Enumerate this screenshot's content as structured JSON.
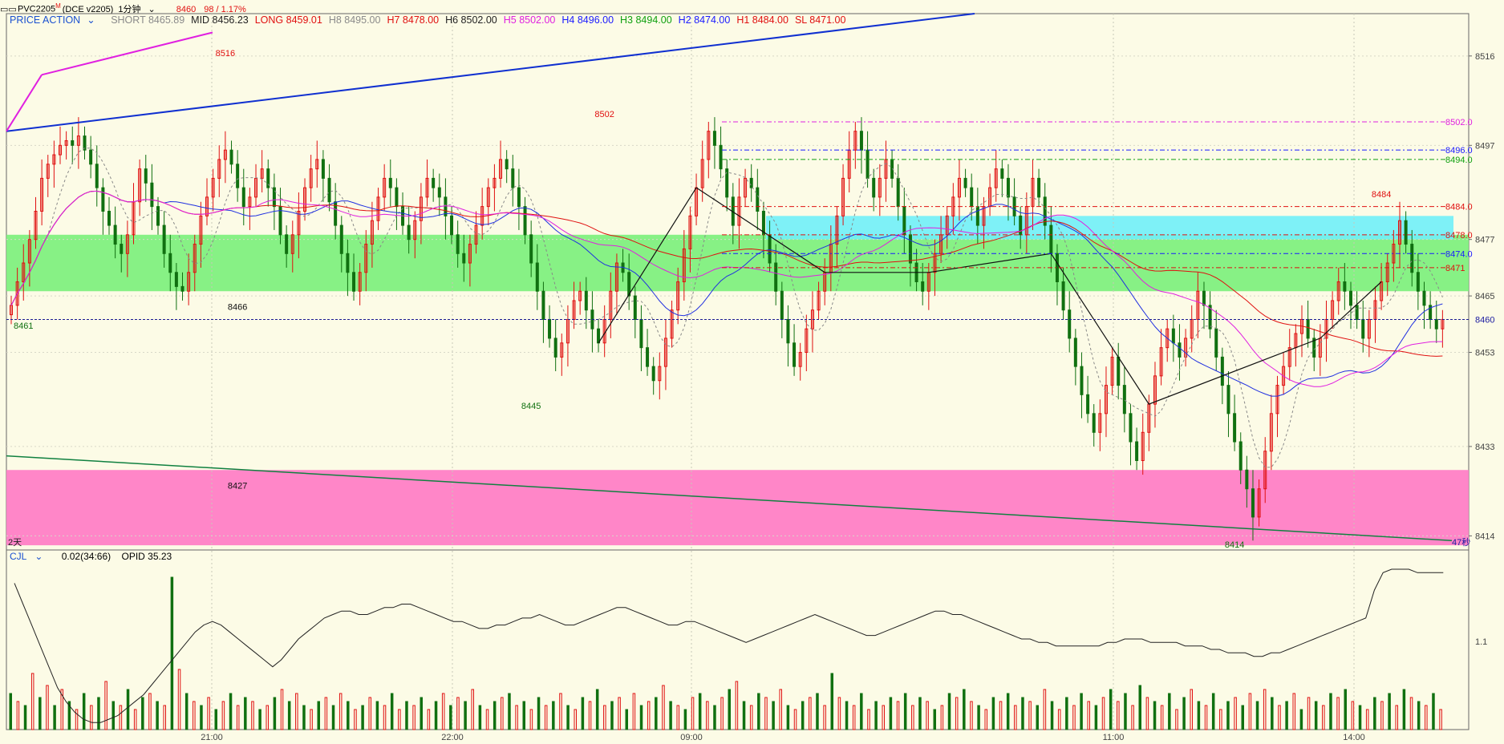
{
  "topbar": {
    "symbol": "PVC2205",
    "superscript": "M",
    "exchange": "(DCE v2205)",
    "period": "1分钟",
    "last_price": "8460",
    "change": "98 / 1.17%",
    "icon": "window-icon"
  },
  "indicator_header": {
    "name": "PRICE ACTION",
    "items": [
      {
        "label": "SHORT",
        "value": "8465.89",
        "color": "#8a8a8a"
      },
      {
        "label": "MID",
        "value": "8456.23",
        "color": "#222222"
      },
      {
        "label": "LONG",
        "value": "8459.01",
        "color": "#e01010"
      },
      {
        "label": "H8",
        "value": "8495.00",
        "color": "#8a8a8a"
      },
      {
        "label": "H7",
        "value": "8478.00",
        "color": "#e01010"
      },
      {
        "label": "H6",
        "value": "8502.00",
        "color": "#222222"
      },
      {
        "label": "H5",
        "value": "8502.00",
        "color": "#e020e0"
      },
      {
        "label": "H4",
        "value": "8496.00",
        "color": "#1a1aff"
      },
      {
        "label": "H3",
        "value": "8494.00",
        "color": "#10a010"
      },
      {
        "label": "H2",
        "value": "8474.00",
        "color": "#1a1aff"
      },
      {
        "label": "H1",
        "value": "8484.00",
        "color": "#e01010"
      },
      {
        "label": "SL",
        "value": "8471.00",
        "color": "#e01010"
      }
    ]
  },
  "sub_header": {
    "name": "CJL",
    "value": "0.02(34:66)",
    "opid": "OPID 35.23"
  },
  "colors": {
    "background": "#fcfbe6",
    "up_candle": "#e01010",
    "down_candle": "#107010",
    "green_zone": "#7af07a",
    "cyan_zone": "#70f0f8",
    "pink_zone": "#ff7fc6",
    "axis_text": "#444444"
  },
  "chart_data": [
    {
      "type": "candlestick",
      "title": "PVC2205 1分钟",
      "y_ticks": [
        8516,
        8497,
        8477,
        8465,
        8453,
        8433,
        8414
      ],
      "last_price_label": "8460",
      "x_ticks": [
        "21:00",
        "22:00",
        "09:00",
        "11:00",
        "14:00"
      ],
      "period_label": "2天",
      "countdown_label": "47秒",
      "ylim": [
        8411,
        8525
      ],
      "zones": [
        {
          "name": "green",
          "from": 8466,
          "to": 8478
        },
        {
          "name": "cyan",
          "from": 8477,
          "to": 8482
        },
        {
          "name": "pink",
          "from": 8412,
          "to": 8428
        }
      ],
      "level_labels": [
        {
          "text": "8502.0",
          "value": 8502
        },
        {
          "text": "8496.0",
          "value": 8496
        },
        {
          "text": "8494.0",
          "value": 8494
        },
        {
          "text": "8484.0",
          "value": 8484
        },
        {
          "text": "8478.0",
          "value": 8478
        },
        {
          "text": "8474.0",
          "value": 8474
        },
        {
          "text": "8471",
          "value": 8471
        }
      ],
      "annotations": [
        "8516",
        "8502",
        "8484",
        "8466",
        "8461",
        "8445",
        "8427",
        "8414"
      ],
      "close": [
        8463,
        8468,
        8472,
        8477,
        8483,
        8490,
        8493,
        8495,
        8497,
        8498,
        8497,
        8499,
        8496,
        8493,
        8488,
        8483,
        8480,
        8476,
        8474,
        8478,
        8485,
        8492,
        8489,
        8484,
        8480,
        8474,
        8470,
        8467,
        8466,
        8470,
        8476,
        8482,
        8486,
        8490,
        8494,
        8496,
        8493,
        8488,
        8484,
        8486,
        8490,
        8492,
        8488,
        8484,
        8478,
        8474,
        8478,
        8483,
        8488,
        8492,
        8494,
        8490,
        8485,
        8480,
        8474,
        8470,
        8466,
        8470,
        8476,
        8481,
        8486,
        8490,
        8488,
        8484,
        8480,
        8477,
        8481,
        8486,
        8490,
        8488,
        8486,
        8482,
        8478,
        8474,
        8472,
        8476,
        8480,
        8484,
        8488,
        8490,
        8494,
        8492,
        8488,
        8484,
        8478,
        8472,
        8466,
        8460,
        8456,
        8452,
        8455,
        8460,
        8464,
        8466,
        8462,
        8458,
        8455,
        8460,
        8466,
        8472,
        8470,
        8465,
        8460,
        8454,
        8450,
        8447,
        8450,
        8456,
        8462,
        8468,
        8475,
        8482,
        8488,
        8494,
        8500,
        8497,
        8492,
        8486,
        8480,
        8486,
        8490,
        8488,
        8483,
        8478,
        8472,
        8466,
        8460,
        8455,
        8450,
        8453,
        8458,
        8462,
        8466,
        8470,
        8476,
        8482,
        8490,
        8496,
        8500,
        8496,
        8490,
        8486,
        8490,
        8494,
        8490,
        8484,
        8478,
        8472,
        8468,
        8466,
        8470,
        8474,
        8478,
        8482,
        8486,
        8490,
        8488,
        8484,
        8480,
        8484,
        8488,
        8492,
        8490,
        8486,
        8482,
        8478,
        8484,
        8490,
        8486,
        8480,
        8474,
        8468,
        8462,
        8456,
        8450,
        8444,
        8440,
        8436,
        8440,
        8446,
        8452,
        8446,
        8440,
        8434,
        8430,
        8436,
        8442,
        8448,
        8454,
        8458,
        8455,
        8452,
        8456,
        8460,
        8466,
        8463,
        8458,
        8452,
        8446,
        8440,
        8434,
        8428,
        8424,
        8418,
        8424,
        8432,
        8440,
        8446,
        8450,
        8454,
        8457,
        8460,
        8456,
        8452,
        8456,
        8460,
        8464,
        8468,
        8466,
        8463,
        8460,
        8456,
        8460,
        8464,
        8468,
        8472,
        8476,
        8481,
        8476,
        8470,
        8466,
        8463,
        8460,
        8458,
        8460
      ]
    },
    {
      "type": "bar",
      "title": "CJL",
      "y_ticks": [
        "1.1"
      ],
      "line_series": [
        42,
        36,
        30,
        24,
        18,
        12,
        8,
        5,
        3,
        2,
        2,
        3,
        4,
        6,
        8,
        10,
        13,
        16,
        19,
        22,
        25,
        28,
        30,
        31,
        30,
        28,
        26,
        24,
        22,
        20,
        18,
        20,
        23,
        26,
        28,
        30,
        32,
        33,
        34,
        34,
        33,
        33,
        34,
        35,
        35,
        36,
        36,
        35,
        34,
        33,
        32,
        31,
        31,
        30,
        29,
        29,
        30,
        30,
        31,
        32,
        32,
        33,
        32,
        31,
        30,
        30,
        31,
        32,
        33,
        34,
        35,
        35,
        34,
        33,
        32,
        31,
        30,
        30,
        31,
        31,
        30,
        29,
        28,
        27,
        26,
        25,
        26,
        27,
        28,
        29,
        30,
        31,
        32,
        33,
        32,
        31,
        30,
        29,
        28,
        27,
        27,
        28,
        29,
        30,
        31,
        32,
        33,
        34,
        34,
        33,
        33,
        32,
        31,
        30,
        29,
        28,
        27,
        26,
        26,
        25,
        25,
        24,
        24,
        24,
        24,
        24,
        24,
        25,
        25,
        26,
        26,
        26,
        25,
        25,
        25,
        25,
        24,
        24,
        24,
        23,
        23,
        22,
        22,
        22,
        21,
        21,
        22,
        22,
        23,
        24,
        25,
        26,
        27,
        28,
        29,
        30,
        31,
        32,
        40,
        45,
        46,
        46,
        46,
        45,
        45,
        45,
        45
      ],
      "values": [
        9,
        7,
        6,
        14,
        8,
        11,
        6,
        10,
        7,
        5,
        9,
        6,
        8,
        12,
        7,
        6,
        10,
        5,
        8,
        9,
        7,
        6,
        38,
        15,
        9,
        7,
        6,
        8,
        5,
        7,
        9,
        6,
        8,
        7,
        5,
        6,
        8,
        10,
        7,
        9,
        6,
        5,
        7,
        8,
        6,
        9,
        7,
        5,
        6,
        8,
        7,
        6,
        9,
        5,
        7,
        6,
        8,
        5,
        7,
        9,
        6,
        8,
        7,
        10,
        6,
        5,
        7,
        8,
        9,
        6,
        7,
        5,
        8,
        6,
        7,
        9,
        6,
        5,
        8,
        7,
        10,
        6,
        7,
        8,
        5,
        9,
        6,
        7,
        8,
        11,
        7,
        6,
        5,
        8,
        9,
        7,
        6,
        8,
        10,
        12,
        7,
        6,
        9,
        8,
        7,
        10,
        6,
        5,
        7,
        8,
        9,
        6,
        14,
        8,
        7,
        6,
        9,
        5,
        7,
        6,
        8,
        7,
        9,
        6,
        8,
        7,
        5,
        6,
        9,
        8,
        10,
        7,
        6,
        5,
        8,
        7,
        9,
        6,
        8,
        7,
        6,
        10,
        7,
        5,
        8,
        6,
        9,
        7,
        6,
        8,
        10,
        7,
        9,
        6,
        11,
        8,
        7,
        6,
        9,
        5,
        8,
        10,
        7,
        6,
        9,
        5,
        7,
        8,
        6,
        9,
        7,
        10,
        8,
        6,
        7,
        9,
        5,
        8,
        7,
        6,
        9,
        8,
        10,
        7,
        6,
        5,
        8,
        7,
        9,
        6,
        10,
        8,
        7,
        6,
        9,
        5
      ]
    }
  ]
}
